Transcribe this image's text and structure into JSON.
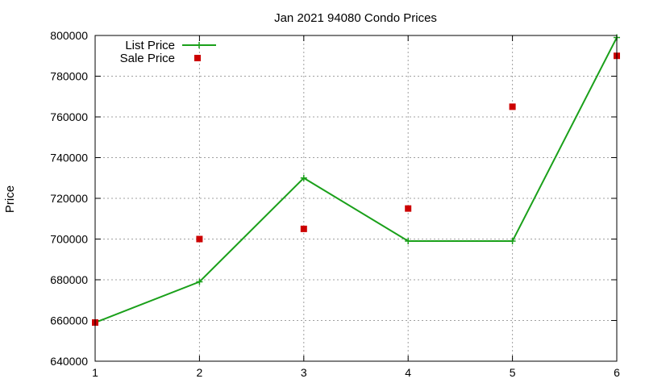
{
  "chart_data": {
    "type": "line",
    "title": "Jan 2021 94080 Condo Prices",
    "xlabel": "",
    "ylabel": "Price",
    "xlim": [
      1,
      6
    ],
    "ylim": [
      640000,
      800000
    ],
    "xticks": [
      "1",
      "2",
      "3",
      "4",
      "5",
      "6"
    ],
    "yticks": [
      "640000",
      "660000",
      "680000",
      "700000",
      "720000",
      "740000",
      "760000",
      "780000",
      "800000"
    ],
    "grid": true,
    "legend_position": "top-left",
    "series": [
      {
        "name": "List Price",
        "style": "line-with-cross-markers",
        "color": "#1aa01a",
        "x": [
          1,
          2,
          3,
          4,
          5,
          6
        ],
        "y": [
          659000,
          679000,
          730000,
          699000,
          699000,
          799000
        ]
      },
      {
        "name": "Sale Price",
        "style": "square-markers",
        "color": "#cc0000",
        "x": [
          1,
          2,
          3,
          4,
          5,
          6
        ],
        "y": [
          659000,
          700000,
          705000,
          715000,
          765000,
          790000
        ]
      }
    ]
  }
}
